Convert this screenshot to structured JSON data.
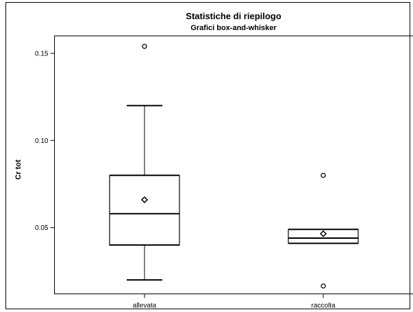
{
  "chart_data": {
    "type": "box",
    "title": "Statistiche di riepilogo",
    "subtitle": "Grafici box-and-whisker",
    "ylabel": "Cr tot",
    "xlabel": "",
    "ylim": [
      0.012,
      0.16
    ],
    "yticks": [
      0.05,
      0.1,
      0.15
    ],
    "ytick_labels": [
      "0.05",
      "0.10",
      "0.15"
    ],
    "categories": [
      "allevata",
      "raccolta"
    ],
    "boxes": [
      {
        "category": "allevata",
        "whisker_low": 0.02,
        "q1": 0.04,
        "median": 0.058,
        "q3": 0.08,
        "whisker_high": 0.12,
        "mean": 0.066,
        "outliers": [
          0.154
        ]
      },
      {
        "category": "raccolta",
        "whisker_low": 0.041,
        "q1": 0.041,
        "median": 0.044,
        "q3": 0.049,
        "whisker_high": 0.049,
        "mean": 0.0465,
        "outliers": [
          0.08,
          0.0165
        ]
      }
    ],
    "grid": false
  }
}
